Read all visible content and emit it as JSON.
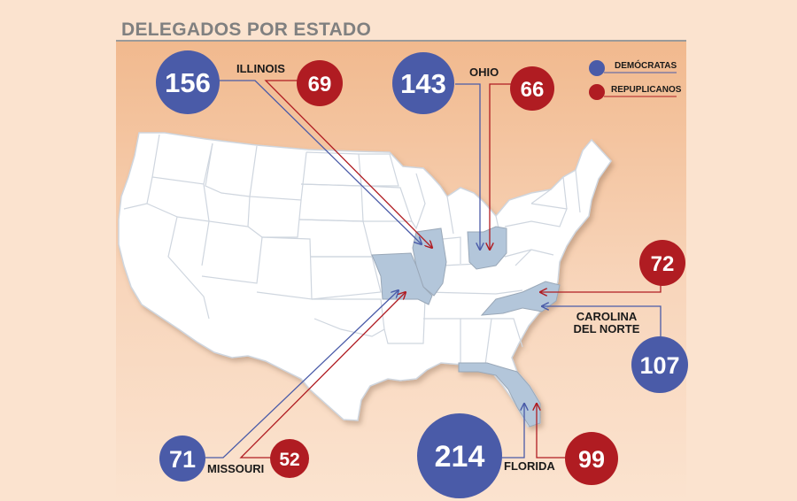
{
  "title": "DELEGADOS POR ESTADO",
  "colors": {
    "democrats": "#4a5ba8",
    "republicans": "#b01c22",
    "highlight": "#b3c6da",
    "map_fill": "#ffffff",
    "background": "#fbe3cf"
  },
  "legend": {
    "democrats_label": "DEMÓCRATAS",
    "republicans_label": "REPUPLICANOS"
  },
  "states": {
    "illinois": {
      "label": "ILLINOIS",
      "democrats": "156",
      "republicans": "69"
    },
    "ohio": {
      "label": "OHIO",
      "democrats": "143",
      "republicans": "66"
    },
    "north_carolina": {
      "label_line1": "CAROLINA",
      "label_line2": "DEL NORTE",
      "democrats": "107",
      "republicans": "72"
    },
    "missouri": {
      "label": "MISSOURI",
      "democrats": "71",
      "republicans": "52"
    },
    "florida": {
      "label": "FLORIDA",
      "democrats": "214",
      "republicans": "99"
    }
  }
}
